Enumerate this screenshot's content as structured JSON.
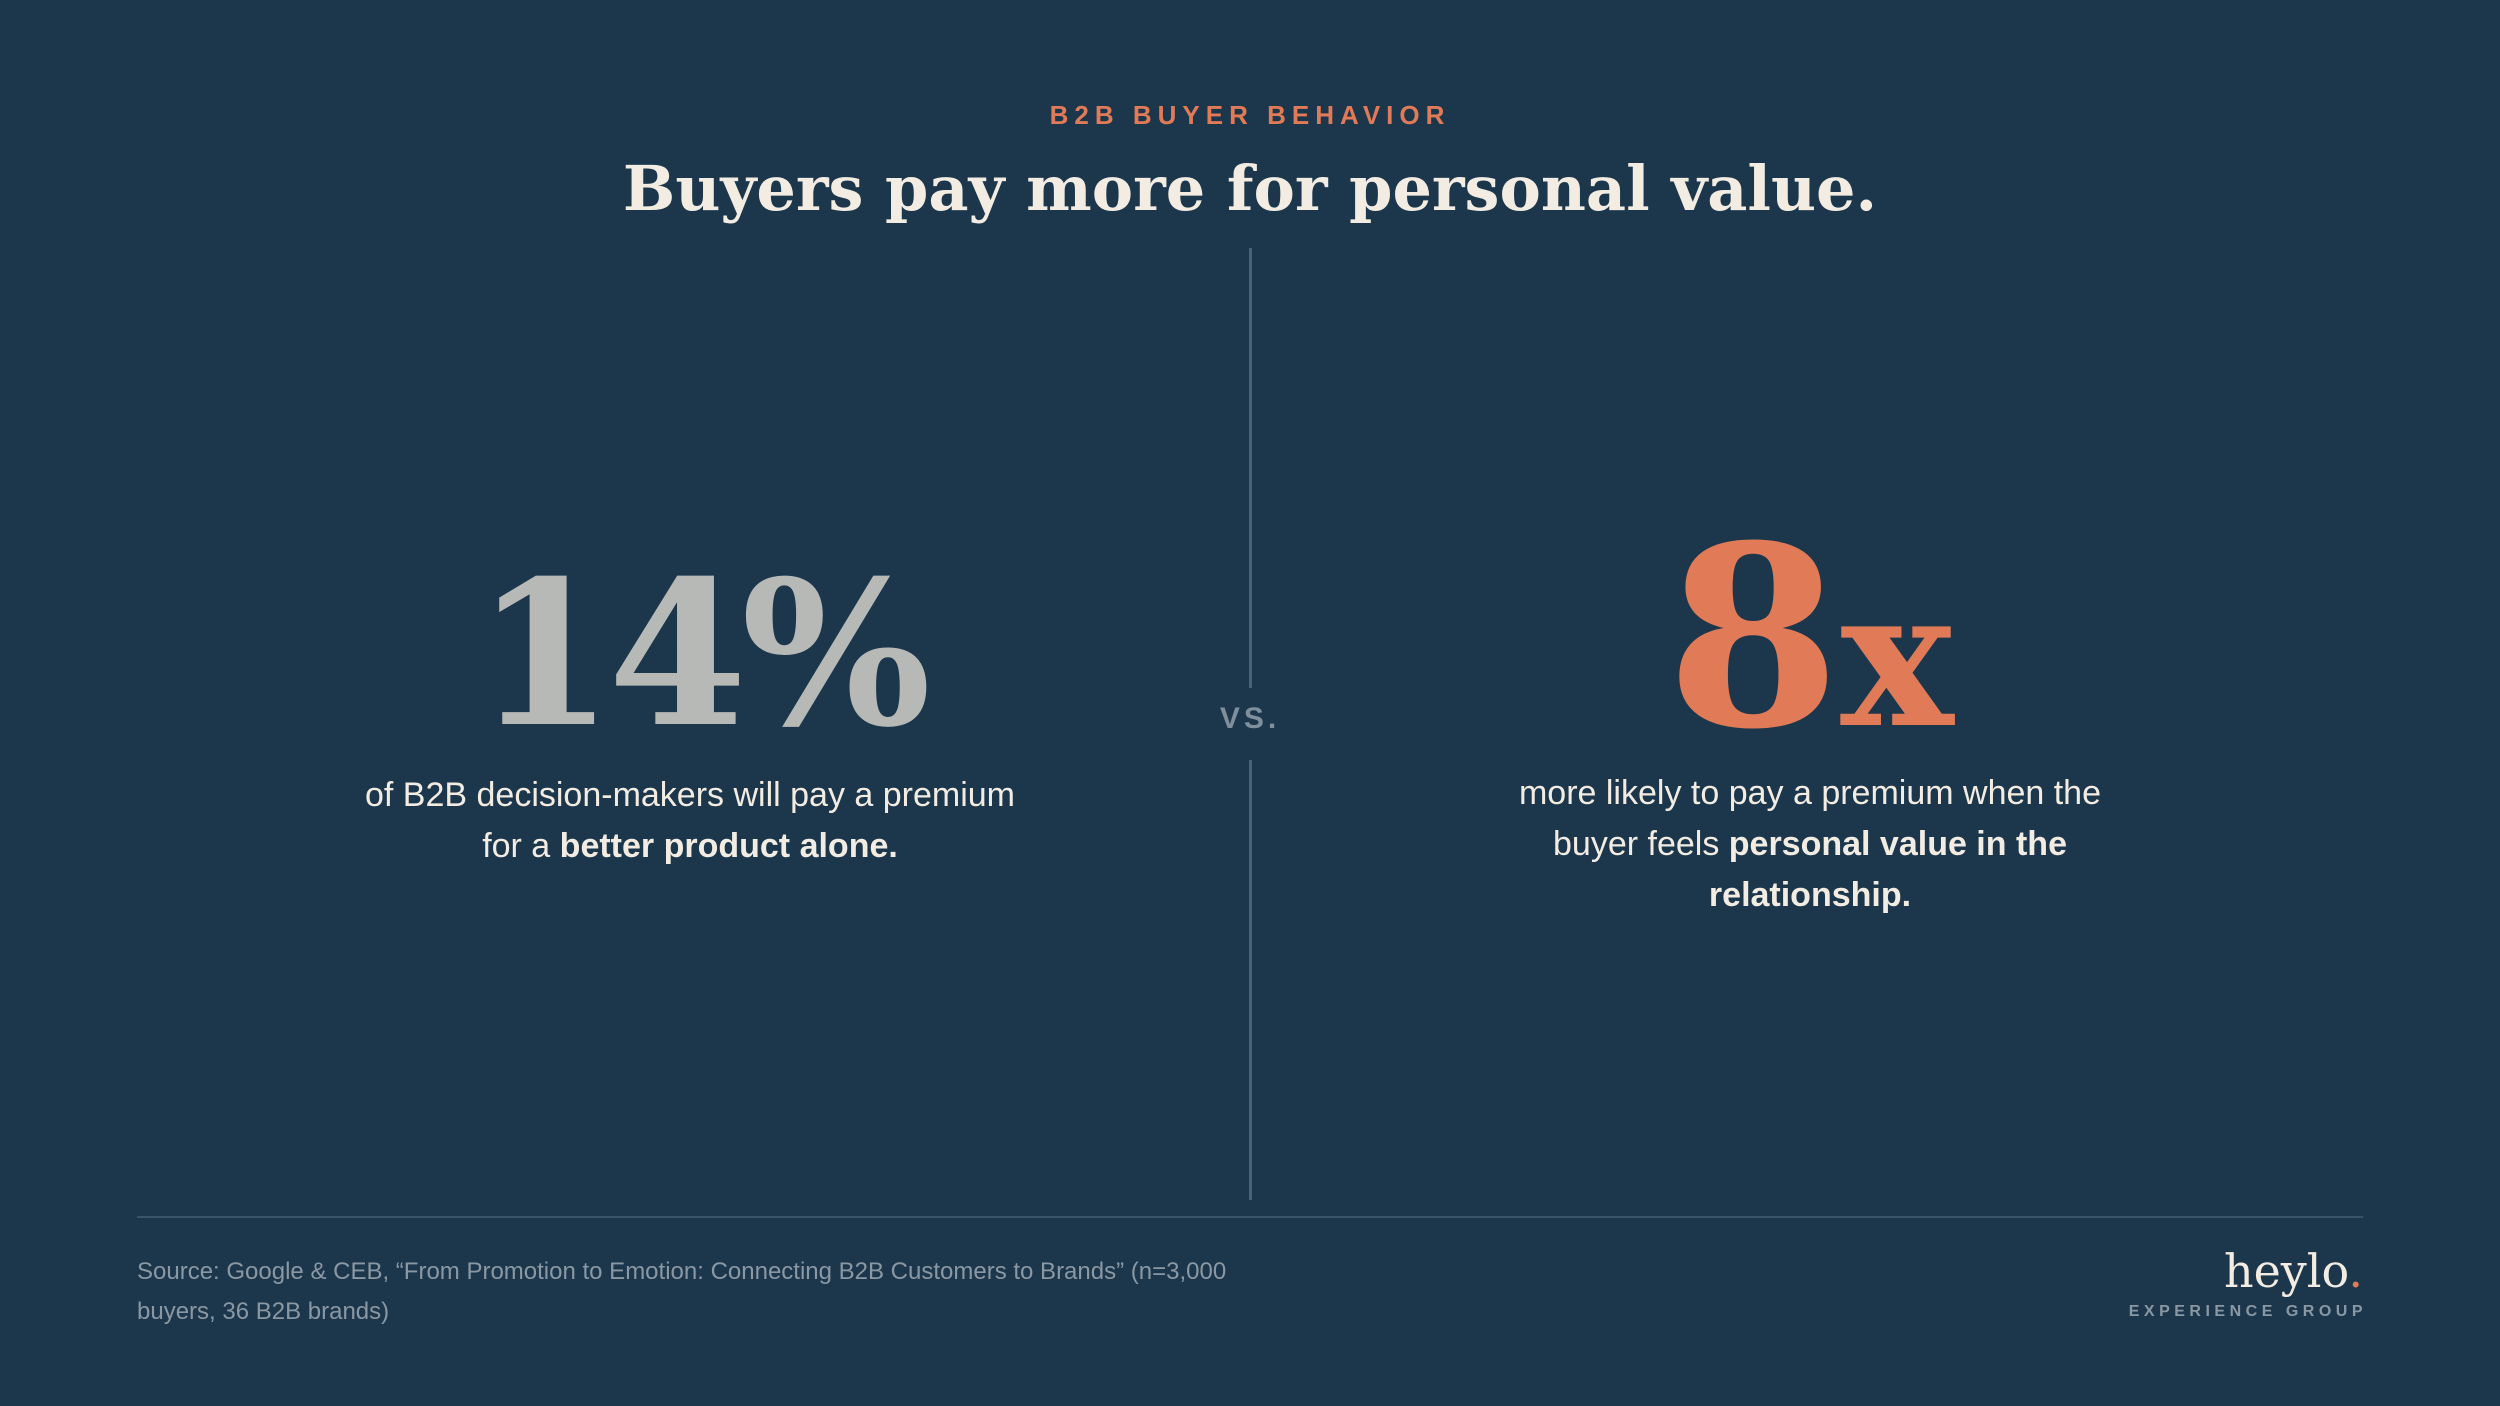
{
  "header": {
    "eyebrow": "B2B BUYER BEHAVIOR",
    "title": "Buyers pay more for personal value."
  },
  "left_stat": {
    "value": "14%",
    "desc_line1": "of B2B decision-makers will pay a premium",
    "desc_line2_pre": "for a ",
    "desc_line2_bold": "better product alone."
  },
  "vs_label": "VS.",
  "right_stat": {
    "value_big": "8",
    "value_small": "x",
    "desc_line1": "more likely to pay a premium when the",
    "desc_line2_pre": "buyer feels ",
    "desc_line2_bold": "personal value in the",
    "desc_line3_bold": "relationship."
  },
  "footer": {
    "source_line1": "Source: Google & CEB, “From Promotion to Emotion: Connecting B2B Customers to Brands” (n=3,000",
    "source_line2": "buyers, 36 B2B brands)",
    "logo_word": "heylo",
    "logo_dot": ".",
    "logo_sub": "EXPERIENCE GROUP"
  },
  "colors": {
    "background": "#1c374c",
    "accent": "#e07a57",
    "muted_stat": "#b7b9b7",
    "text": "#f2ece2"
  }
}
